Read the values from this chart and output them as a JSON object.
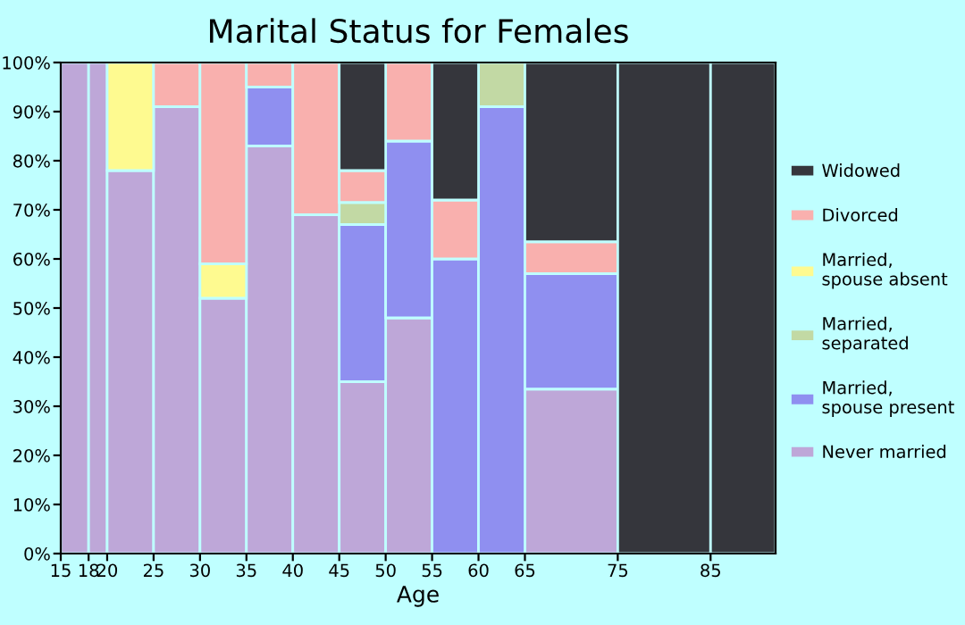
{
  "chart_data": {
    "type": "bar",
    "stacked": true,
    "title": "Marital Status for Females",
    "xlabel": "Age",
    "x": [
      16.5,
      19,
      22.5,
      27.5,
      32.5,
      37.5,
      42.5,
      47.5,
      52.5,
      57.5,
      62.5,
      70,
      80,
      88.5
    ],
    "xlim": [
      15,
      92
    ],
    "xticks": [
      15,
      18,
      20,
      25,
      30,
      35,
      40,
      45,
      50,
      55,
      60,
      65,
      75,
      85
    ],
    "ylim": [
      0,
      100
    ],
    "yticks": [
      {
        "value": 0,
        "label": "0%"
      },
      {
        "value": 10,
        "label": "10%"
      },
      {
        "value": 20,
        "label": "20%"
      },
      {
        "value": 30,
        "label": "30%"
      },
      {
        "value": 40,
        "label": "40%"
      },
      {
        "value": 50,
        "label": "50%"
      },
      {
        "value": 60,
        "label": "60%"
      },
      {
        "value": 70,
        "label": "70%"
      },
      {
        "value": 80,
        "label": "80%"
      },
      {
        "value": 90,
        "label": "90%"
      },
      {
        "value": 100,
        "label": "100%"
      }
    ],
    "legend": "right",
    "grid": false,
    "series": [
      {
        "name": "Never married",
        "color": "#bea7d8",
        "values": [
          100,
          100,
          78,
          91,
          52,
          83,
          69,
          35,
          48,
          null,
          null,
          33.5,
          null,
          null
        ]
      },
      {
        "name": "Married, spouse present",
        "color": "#8f8ff0",
        "values": [
          null,
          null,
          null,
          null,
          null,
          12,
          null,
          32,
          36,
          60,
          91,
          23.5,
          null,
          null
        ]
      },
      {
        "name": "Married, separated",
        "color": "#c2d9a4",
        "values": [
          null,
          null,
          null,
          null,
          null,
          null,
          null,
          4.5,
          null,
          null,
          9,
          null,
          null,
          null
        ]
      },
      {
        "name": "Married, spouse absent",
        "color": "#fefa90",
        "values": [
          null,
          null,
          22,
          null,
          7,
          null,
          null,
          null,
          null,
          null,
          null,
          null,
          null,
          null
        ]
      },
      {
        "name": "Divorced",
        "color": "#f9b0ae",
        "values": [
          null,
          null,
          null,
          9,
          41,
          5,
          31,
          6.5,
          16,
          12,
          null,
          6.5,
          null,
          null
        ]
      },
      {
        "name": "Widowed",
        "color": "#35363c",
        "values": [
          null,
          null,
          null,
          null,
          null,
          null,
          null,
          22,
          null,
          28,
          null,
          36.5,
          100,
          100
        ]
      }
    ]
  }
}
